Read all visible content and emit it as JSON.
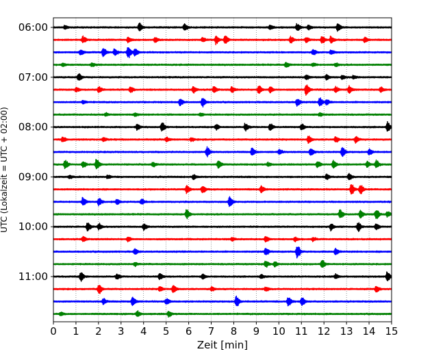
{
  "chart_data": {
    "type": "line",
    "title": "",
    "xlabel": "Zeit  [min]",
    "ylabel": "UTC (Lokalzeit = UTC + 02:00)",
    "xlim": [
      0,
      15
    ],
    "x_ticks": [
      "0",
      "1",
      "2",
      "3",
      "4",
      "5",
      "6",
      "7",
      "8",
      "9",
      "10",
      "11",
      "12",
      "13",
      "14",
      "15"
    ],
    "y_ticks": [
      "06:00",
      "07:00",
      "08:00",
      "09:00",
      "10:00",
      "11:00"
    ],
    "grid": "vertical dotted",
    "trace_interval_min": 15,
    "trace_colors": [
      "#000000",
      "#ff0000",
      "#0000ff",
      "#008000"
    ],
    "traces": [
      {
        "start": "06:00",
        "events": [
          [
            0.5,
            0.3
          ],
          [
            3.8,
            0.8
          ],
          [
            5.8,
            0.6
          ],
          [
            9.6,
            0.4
          ],
          [
            10.8,
            0.7
          ],
          [
            11.3,
            0.4
          ],
          [
            12.6,
            0.8
          ]
        ]
      },
      {
        "start": "06:15",
        "events": [
          [
            1.3,
            0.6
          ],
          [
            3.3,
            0.5
          ],
          [
            4.5,
            0.5
          ],
          [
            6.6,
            0.4
          ],
          [
            7.2,
            0.7
          ],
          [
            7.6,
            0.9
          ],
          [
            10.5,
            0.6
          ],
          [
            11.2,
            0.5
          ],
          [
            11.9,
            0.7
          ],
          [
            12.3,
            0.6
          ],
          [
            13.8,
            0.5
          ]
        ]
      },
      {
        "start": "06:30",
        "events": [
          [
            1.2,
            0.5
          ],
          [
            2.2,
            0.8
          ],
          [
            2.7,
            0.6
          ],
          [
            3.3,
            1.2
          ],
          [
            3.6,
            0.8
          ],
          [
            11.5,
            0.5
          ],
          [
            12.3,
            0.4
          ]
        ]
      },
      {
        "start": "06:45",
        "events": [
          [
            0.4,
            0.3
          ],
          [
            1.7,
            0.3
          ],
          [
            10.3,
            0.5
          ],
          [
            11.5,
            0.3
          ],
          [
            12.5,
            0.3
          ]
        ]
      },
      {
        "start": "07:00",
        "events": [
          [
            1.1,
            0.7
          ],
          [
            11.2,
            0.4
          ],
          [
            12.1,
            0.5
          ],
          [
            12.8,
            0.4
          ],
          [
            13.3,
            0.3
          ]
        ]
      },
      {
        "start": "07:15",
        "events": [
          [
            1.0,
            0.4
          ],
          [
            2.0,
            0.6
          ],
          [
            3.4,
            0.5
          ],
          [
            6.2,
            0.6
          ],
          [
            7.1,
            0.6
          ],
          [
            7.9,
            0.5
          ],
          [
            9.1,
            0.8
          ],
          [
            9.6,
            0.6
          ],
          [
            11.2,
            1.1
          ],
          [
            12.5,
            0.5
          ],
          [
            13.1,
            0.7
          ],
          [
            14.5,
            0.5
          ]
        ]
      },
      {
        "start": "07:30",
        "events": [
          [
            1.3,
            0.3
          ],
          [
            5.6,
            0.6
          ],
          [
            6.6,
            0.9
          ],
          [
            10.8,
            0.7
          ],
          [
            11.8,
            0.8
          ],
          [
            12.1,
            0.5
          ]
        ]
      },
      {
        "start": "07:45",
        "events": [
          [
            2.3,
            0.3
          ],
          [
            3.6,
            0.3
          ],
          [
            6.5,
            0.3
          ],
          [
            11.8,
            0.3
          ]
        ]
      },
      {
        "start": "08:00",
        "events": [
          [
            3.7,
            0.6
          ],
          [
            4.8,
            0.9
          ],
          [
            7.2,
            0.5
          ],
          [
            8.5,
            0.7
          ],
          [
            9.6,
            0.6
          ],
          [
            11.0,
            0.6
          ],
          [
            14.8,
            0.9
          ]
        ]
      },
      {
        "start": "08:15",
        "events": [
          [
            0.4,
            0.5
          ],
          [
            2.2,
            0.4
          ],
          [
            5.0,
            0.4
          ],
          [
            6.1,
            0.3
          ],
          [
            11.3,
            0.7
          ],
          [
            12.5,
            0.5
          ],
          [
            13.4,
            0.6
          ]
        ]
      },
      {
        "start": "08:30",
        "events": [
          [
            6.8,
            0.9
          ],
          [
            8.8,
            0.7
          ],
          [
            10.0,
            0.5
          ],
          [
            11.4,
            0.8
          ],
          [
            12.8,
            0.9
          ],
          [
            14.0,
            0.6
          ]
        ]
      },
      {
        "start": "08:45",
        "events": [
          [
            0.5,
            0.8
          ],
          [
            1.3,
            0.5
          ],
          [
            1.9,
            1.0
          ],
          [
            4.4,
            0.4
          ],
          [
            7.3,
            0.8
          ],
          [
            9.5,
            0.3
          ],
          [
            11.7,
            0.6
          ],
          [
            12.4,
            0.8
          ],
          [
            13.9,
            0.5
          ],
          [
            14.3,
            0.7
          ]
        ]
      },
      {
        "start": "09:00",
        "events": [
          [
            0.7,
            0.3
          ],
          [
            2.4,
            0.3
          ],
          [
            6.2,
            0.4
          ],
          [
            12.1,
            0.5
          ],
          [
            13.1,
            0.6
          ]
        ]
      },
      {
        "start": "09:15",
        "events": [
          [
            5.9,
            0.8
          ],
          [
            6.6,
            0.7
          ],
          [
            9.2,
            0.6
          ],
          [
            13.2,
            1.1
          ],
          [
            13.6,
            0.9
          ]
        ]
      },
      {
        "start": "09:30",
        "events": [
          [
            1.3,
            0.8
          ],
          [
            2.0,
            0.7
          ],
          [
            2.8,
            0.5
          ],
          [
            3.9,
            0.5
          ],
          [
            7.8,
            1.0
          ]
        ]
      },
      {
        "start": "09:45",
        "events": [
          [
            5.9,
            0.9
          ],
          [
            12.7,
            0.9
          ],
          [
            13.6,
            0.8
          ],
          [
            14.3,
            0.9
          ],
          [
            14.8,
            0.5
          ]
        ]
      },
      {
        "start": "10:00",
        "events": [
          [
            1.5,
            0.8
          ],
          [
            2.0,
            0.6
          ],
          [
            4.0,
            0.6
          ],
          [
            12.3,
            0.6
          ],
          [
            13.5,
            0.8
          ],
          [
            14.3,
            0.6
          ]
        ]
      },
      {
        "start": "10:15",
        "events": [
          [
            1.3,
            0.5
          ],
          [
            3.3,
            0.4
          ],
          [
            7.9,
            0.3
          ],
          [
            9.4,
            0.6
          ],
          [
            10.7,
            0.4
          ],
          [
            11.5,
            0.3
          ]
        ]
      },
      {
        "start": "10:30",
        "events": [
          [
            3.6,
            0.5
          ],
          [
            9.4,
            0.7
          ],
          [
            10.8,
            1.3
          ],
          [
            12.5,
            0.6
          ]
        ]
      },
      {
        "start": "10:45",
        "events": [
          [
            3.6,
            0.3
          ],
          [
            9.4,
            0.6
          ],
          [
            9.8,
            0.5
          ],
          [
            11.9,
            0.7
          ]
        ]
      },
      {
        "start": "11:00",
        "events": [
          [
            1.2,
            0.9
          ],
          [
            2.8,
            0.5
          ],
          [
            4.7,
            0.6
          ],
          [
            6.6,
            0.5
          ],
          [
            9.2,
            0.4
          ],
          [
            12.5,
            0.4
          ],
          [
            14.8,
            0.9
          ]
        ]
      },
      {
        "start": "11:15",
        "events": [
          [
            2.0,
            0.9
          ],
          [
            4.7,
            0.5
          ],
          [
            5.3,
            0.8
          ],
          [
            7.0,
            0.4
          ],
          [
            9.4,
            0.4
          ],
          [
            14.3,
            0.6
          ]
        ]
      },
      {
        "start": "11:30",
        "events": [
          [
            2.2,
            0.5
          ],
          [
            3.5,
            0.9
          ],
          [
            5.0,
            0.6
          ],
          [
            8.1,
            1.0
          ],
          [
            10.4,
            0.9
          ],
          [
            11.0,
            0.8
          ]
        ]
      },
      {
        "start": "11:45",
        "events": [
          [
            0.3,
            0.3
          ],
          [
            3.7,
            0.5
          ],
          [
            5.1,
            0.5
          ]
        ]
      }
    ]
  }
}
